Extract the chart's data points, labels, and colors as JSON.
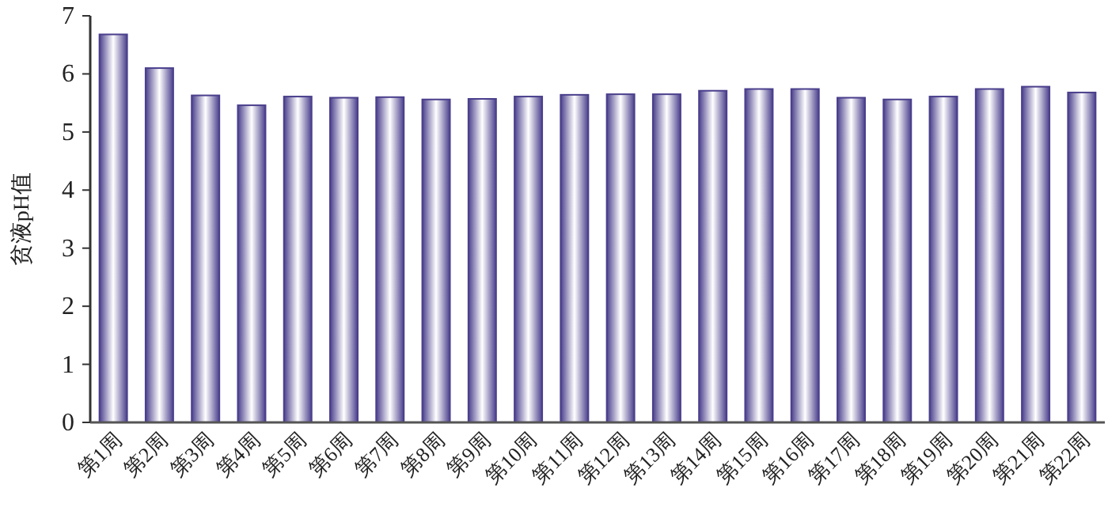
{
  "chart_data": {
    "type": "bar",
    "ylabel": "贫液pH值",
    "categories": [
      "第1周",
      "第2周",
      "第3周",
      "第4周",
      "第5周",
      "第6周",
      "第7周",
      "第8周",
      "第9周",
      "第10周",
      "第11周",
      "第12周",
      "第13周",
      "第14周",
      "第15周",
      "第16周",
      "第17周",
      "第18周",
      "第19周",
      "第20周",
      "第21周",
      "第22周"
    ],
    "series": [
      {
        "color": "#4a3f8c",
        "values": [
          6.68,
          6.1,
          5.63,
          5.46,
          5.61,
          5.59,
          5.6,
          5.56,
          5.57,
          5.61,
          5.64,
          5.65,
          5.65,
          5.71,
          5.74,
          5.74,
          5.59,
          5.56,
          5.61,
          5.74,
          5.78,
          5.68
        ]
      }
    ],
    "ylim": [
      0,
      7
    ],
    "yticks": [
      0,
      1,
      2,
      3,
      4,
      5,
      6,
      7
    ],
    "grid": false
  }
}
